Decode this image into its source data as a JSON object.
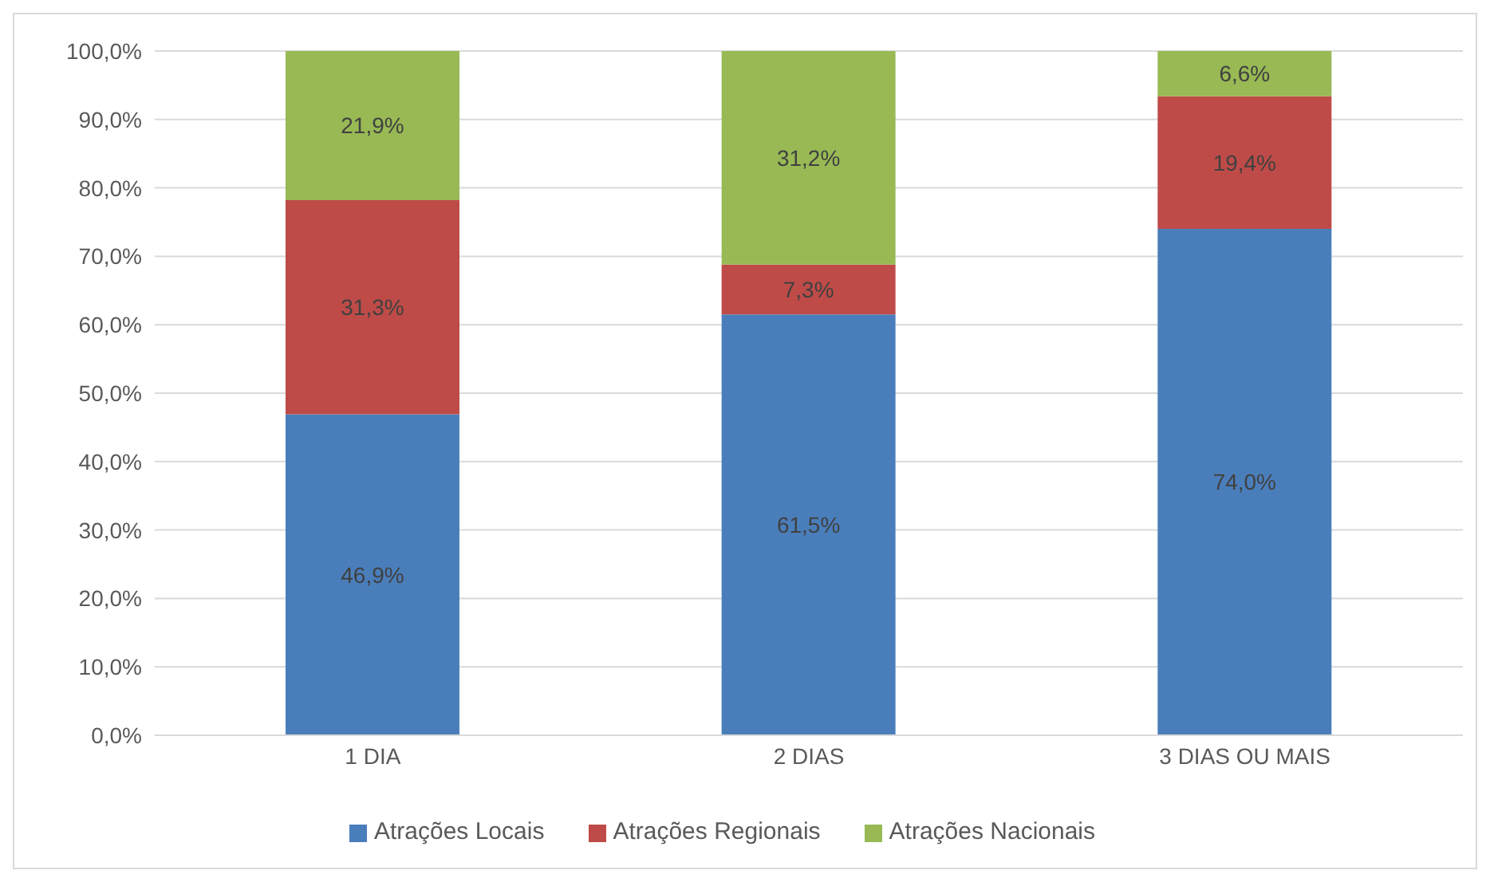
{
  "chart_data": {
    "type": "bar",
    "stacked": true,
    "categories": [
      "1 DIA",
      "2 DIAS",
      "3 DIAS OU MAIS"
    ],
    "series": [
      {
        "name": "Atrações Locais",
        "color": "#4a7ebb",
        "values": [
          46.9,
          61.5,
          74.0
        ],
        "value_labels": [
          "46,9%",
          "61,5%",
          "74,0%"
        ]
      },
      {
        "name": "Atrações Regionais",
        "color": "#be4b48",
        "values": [
          31.3,
          7.3,
          19.4
        ],
        "value_labels": [
          "31,3%",
          "7,3%",
          "19,4%"
        ]
      },
      {
        "name": "Atrações Nacionais",
        "color": "#98b954",
        "values": [
          21.9,
          31.2,
          6.6
        ],
        "value_labels": [
          "21,9%",
          "31,2%",
          "6,6%"
        ]
      }
    ],
    "ylim": [
      0,
      100
    ],
    "yticks": [
      {
        "value": 0,
        "label": "0,0%"
      },
      {
        "value": 10,
        "label": "10,0%"
      },
      {
        "value": 20,
        "label": "20,0%"
      },
      {
        "value": 30,
        "label": "30,0%"
      },
      {
        "value": 40,
        "label": "40,0%"
      },
      {
        "value": 50,
        "label": "50,0%"
      },
      {
        "value": 60,
        "label": "60,0%"
      },
      {
        "value": 70,
        "label": "70,0%"
      },
      {
        "value": 80,
        "label": "80,0%"
      },
      {
        "value": 90,
        "label": "90,0%"
      },
      {
        "value": 100,
        "label": "100,0%"
      }
    ],
    "grid": "y",
    "legend": "bottom"
  }
}
